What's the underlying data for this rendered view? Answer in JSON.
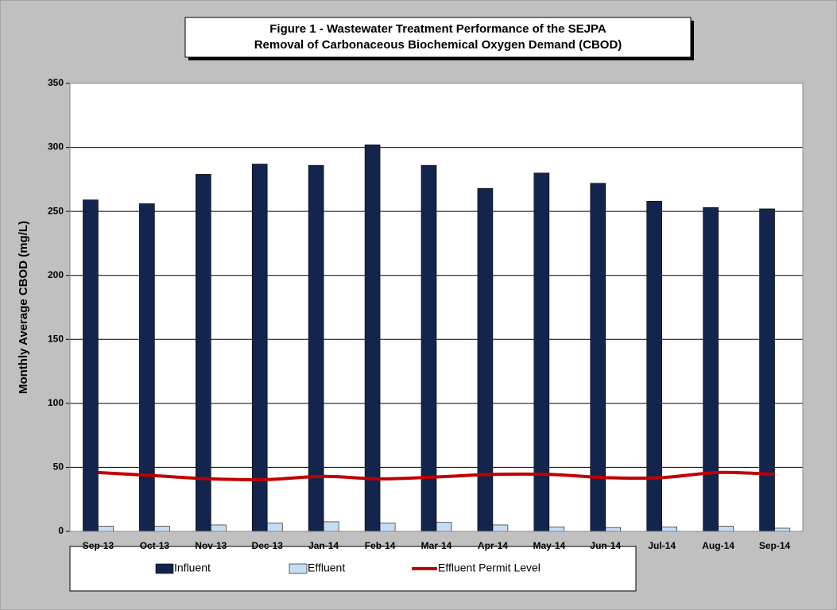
{
  "chart_data": {
    "type": "bar",
    "title": "Figure 1 - Wastewater Treatment Performance of the SEJPA",
    "subtitle": "Removal of Carbonaceous Biochemical Oxygen Demand (CBOD)",
    "y_label": "Monthly Average CBOD (mg/L)",
    "categories": [
      "Sep-13",
      "Oct-13",
      "Nov-13",
      "Dec-13",
      "Jan-14",
      "Feb-14",
      "Mar-14",
      "Apr-14",
      "May-14",
      "Jun-14",
      "Jul-14",
      "Aug-14",
      "Sep-14"
    ],
    "series": [
      {
        "name": "Influent",
        "type": "bar",
        "color": "#13254d",
        "values": [
          259,
          256,
          279,
          287,
          286,
          302,
          286,
          268,
          280,
          272,
          258,
          253,
          252
        ]
      },
      {
        "name": "Effluent",
        "type": "bar",
        "color": "#c6dcf2",
        "values": [
          4,
          4,
          5,
          6.5,
          7.5,
          6.5,
          7,
          5,
          3.5,
          3,
          3.5,
          4,
          2.5
        ]
      },
      {
        "name": "Effluent Permit Level",
        "type": "line",
        "color": "#c00000",
        "values": [
          46,
          43.5,
          41,
          40.5,
          43,
          41,
          42.5,
          44.5,
          44.5,
          42,
          42,
          46,
          44.5
        ]
      }
    ],
    "ylim": [
      0,
      350
    ],
    "yticks": [
      0,
      50,
      100,
      150,
      200,
      250,
      300,
      350
    ],
    "grid": true,
    "legend": "bottom"
  }
}
